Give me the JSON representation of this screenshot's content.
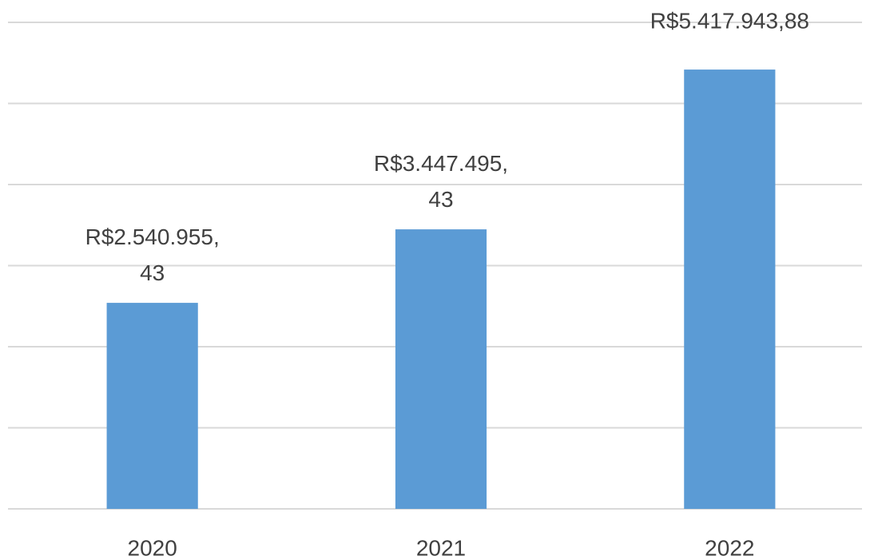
{
  "chart_data": {
    "type": "bar",
    "categories": [
      "2020",
      "2021",
      "2022"
    ],
    "values": [
      2540955.43,
      3447495.43,
      5417943.88
    ],
    "value_labels": [
      "R$2.540.955,43",
      "R$3.447.495,43",
      "R$5.417.943,88"
    ],
    "color": "#5b9bd5",
    "ylim": [
      0,
      6000000
    ],
    "yticks": [
      0,
      1000000,
      2000000,
      3000000,
      4000000,
      5000000,
      6000000
    ],
    "grid": true
  }
}
